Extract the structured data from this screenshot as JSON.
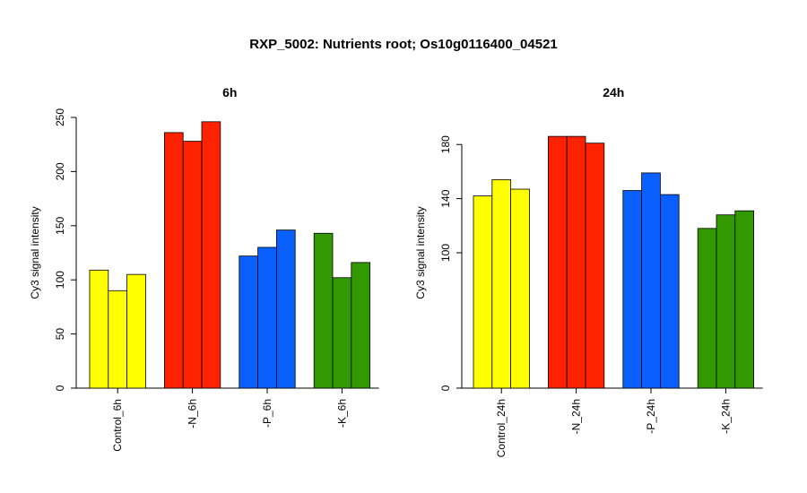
{
  "title": "RXP_5002: Nutrients root; Os10g0116400_04521",
  "chart_data": [
    {
      "type": "bar",
      "title": "6h",
      "ylabel": "Cy3 signal intensity",
      "ylim": [
        0,
        250
      ],
      "yticks": [
        0,
        50,
        100,
        150,
        200,
        250
      ],
      "groups": [
        {
          "label": "Control_6h",
          "color": "#ffff00",
          "values": [
            109,
            90,
            105
          ]
        },
        {
          "label": "-N_6h",
          "color": "#ff2200",
          "values": [
            236,
            228,
            246
          ]
        },
        {
          "label": "-P_6h",
          "color": "#0a60ff",
          "values": [
            122,
            130,
            146
          ]
        },
        {
          "label": "-K_6h",
          "color": "#339900",
          "values": [
            143,
            102,
            116
          ]
        }
      ]
    },
    {
      "type": "bar",
      "title": "24h",
      "ylabel": "Cy3 signal intensity",
      "ylim": [
        0,
        200
      ],
      "yticks": [
        0,
        100,
        140,
        180
      ],
      "groups": [
        {
          "label": "Control_24h",
          "color": "#ffff00",
          "values": [
            142,
            154,
            147
          ]
        },
        {
          "label": "-N_24h",
          "color": "#ff2200",
          "values": [
            186,
            186,
            181
          ]
        },
        {
          "label": "-P_24h",
          "color": "#0a60ff",
          "values": [
            146,
            159,
            143
          ]
        },
        {
          "label": "-K_24h",
          "color": "#339900",
          "values": [
            118,
            128,
            131
          ]
        }
      ]
    }
  ]
}
